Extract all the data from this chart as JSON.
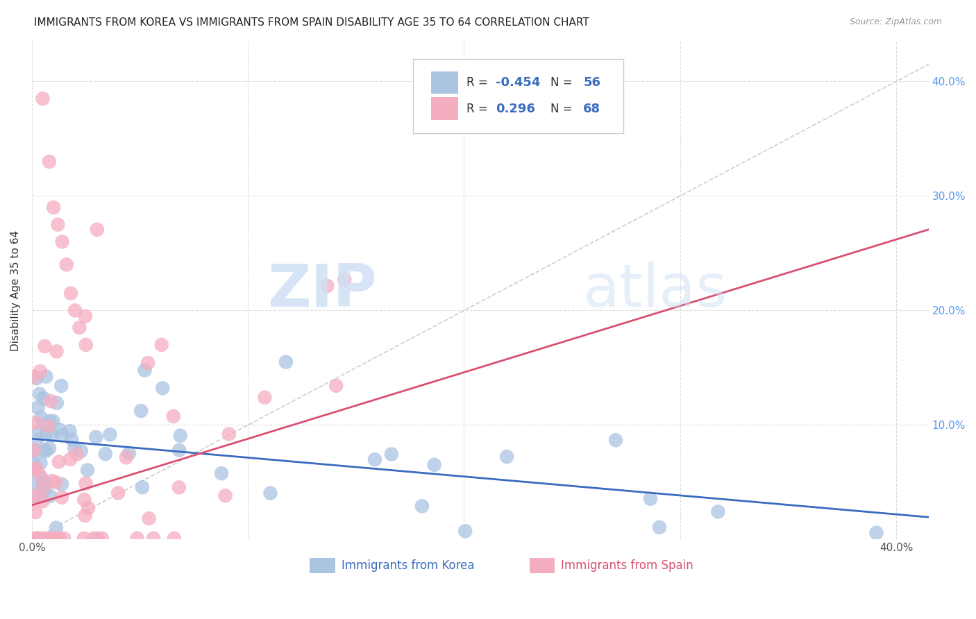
{
  "title": "IMMIGRANTS FROM KOREA VS IMMIGRANTS FROM SPAIN DISABILITY AGE 35 TO 64 CORRELATION CHART",
  "source": "Source: ZipAtlas.com",
  "ylabel": "Disability Age 35 to 64",
  "korea_color": "#aac4e2",
  "spain_color": "#f5adc0",
  "korea_line_color": "#3a6bbf",
  "spain_line_color": "#d95070",
  "diagonal_color": "#c8c8c8",
  "R_korea": -0.454,
  "N_korea": 56,
  "R_spain": 0.296,
  "N_spain": 68,
  "legend_label_korea": "Immigrants from Korea",
  "legend_label_spain": "Immigrants from Spain",
  "background_color": "#ffffff",
  "grid_color": "#dddddd",
  "title_fontsize": 11,
  "label_fontsize": 11,
  "tick_fontsize": 11,
  "right_tick_color": "#5599ee",
  "watermark_color": "#d0e0f5",
  "korea_line_intercept": 0.088,
  "korea_line_slope": -0.165,
  "spain_line_intercept": 0.03,
  "spain_line_slope": 0.58
}
